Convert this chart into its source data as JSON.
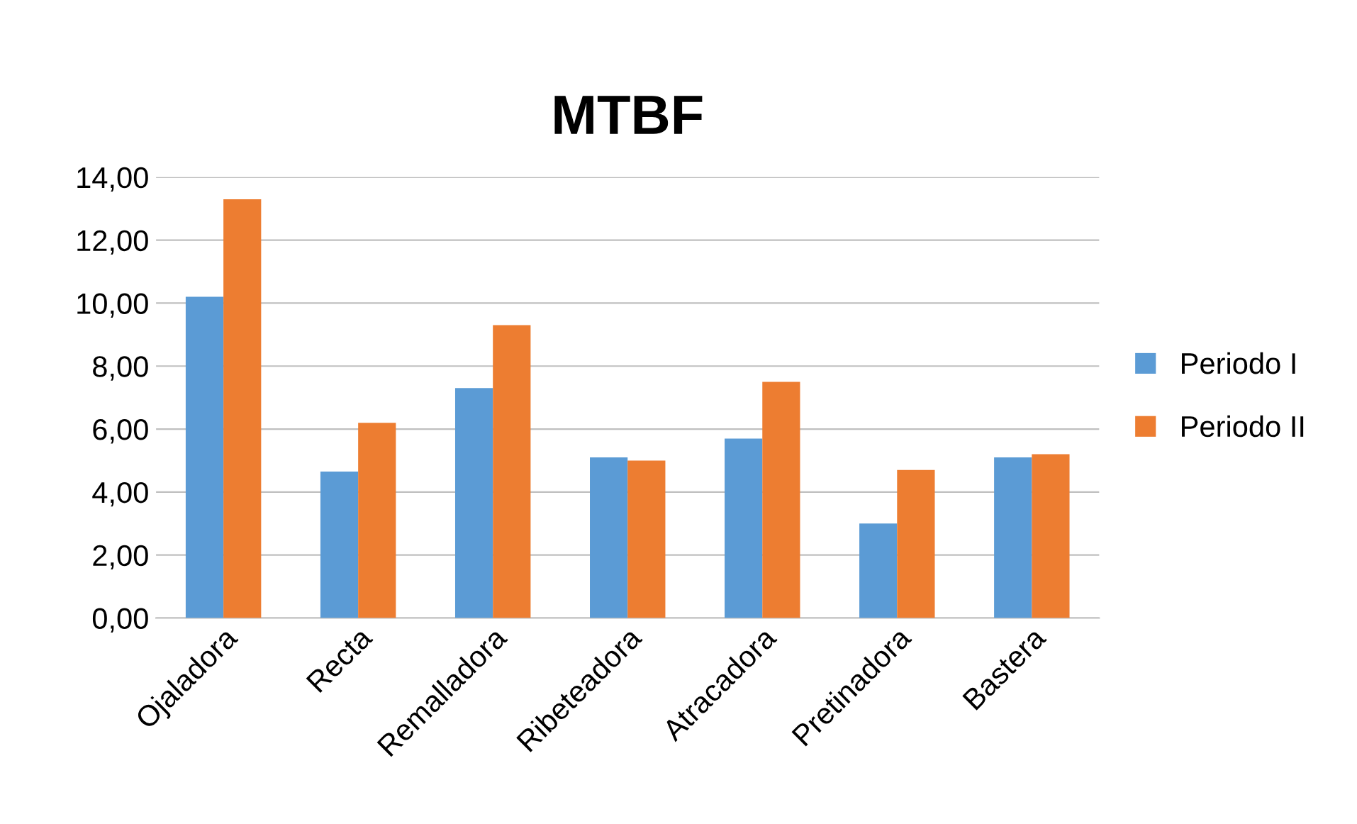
{
  "chart_data": {
    "type": "bar",
    "title": "MTBF",
    "categories": [
      "Ojaladora",
      "Recta",
      "Remalladora",
      "Ribeteadora",
      "Atracadora",
      "Pretinadora",
      "Bastera"
    ],
    "series": [
      {
        "name": "Periodo I",
        "color": "#5b9bd5",
        "values": [
          10.2,
          4.65,
          7.3,
          5.1,
          5.7,
          3.0,
          5.1
        ]
      },
      {
        "name": "Periodo II",
        "color": "#ed7d31",
        "values": [
          13.3,
          6.2,
          9.3,
          5.0,
          7.5,
          4.7,
          5.2
        ]
      }
    ],
    "ylim": [
      0,
      14
    ],
    "yticks": [
      {
        "value": 0,
        "label": "0,00"
      },
      {
        "value": 2,
        "label": "2,00"
      },
      {
        "value": 4,
        "label": "4,00"
      },
      {
        "value": 6,
        "label": "6,00"
      },
      {
        "value": 8,
        "label": "8,00"
      },
      {
        "value": 10,
        "label": "10,00"
      },
      {
        "value": 12,
        "label": "12,00"
      },
      {
        "value": 14,
        "label": "14,00"
      }
    ],
    "grid": "y",
    "legend": "right"
  }
}
